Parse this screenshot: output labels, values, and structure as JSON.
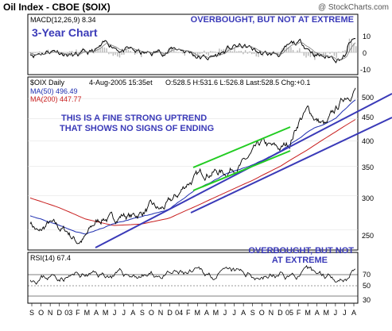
{
  "header": {
    "title": "Oil Index - CBOE ($OIX)",
    "watermark": "@ StockCharts.com"
  },
  "macd_panel": {
    "label": "MACD(12,26,9) 8.34",
    "chart_label": "3-Year Chart",
    "annotation": "OVERBOUGHT, BUT NOT AT EXTREME",
    "y_ticks": [
      "10",
      "0",
      "-10"
    ]
  },
  "price_panel": {
    "info_symbol": "$OIX Daily",
    "info_date": "4-Aug-2005 15:35et",
    "info_ohlc": "O:528.5 H:531.6 L:526.8 Last:528.5 Chg:+0.1",
    "ma50_label": "MA(50) 496.49",
    "ma200_label": "MA(200) 447.77",
    "annotation_line1": "THIS IS A FINE STRONG UPTREND",
    "annotation_line2": "THAT SHOWS NO SIGNS OF ENDING",
    "y_ticks": [
      "500",
      "450",
      "400",
      "350",
      "300",
      "250"
    ]
  },
  "rsi_panel": {
    "label": "RSI(14) 67.4",
    "annotation_line1": "OVERBOUGHT, BUT NOT",
    "annotation_line2": "AT EXTREME",
    "y_ticks": [
      "70",
      "50",
      "30"
    ]
  },
  "x_axis": {
    "labels": [
      "S",
      "O",
      "N",
      "D",
      "03",
      "F",
      "M",
      "A",
      "M",
      "J",
      "J",
      "A",
      "S",
      "O",
      "N",
      "D",
      "04",
      "F",
      "M",
      "A",
      "M",
      "J",
      "J",
      "A",
      "S",
      "O",
      "N",
      "D",
      "05",
      "F",
      "M",
      "A",
      "M",
      "J",
      "J",
      "A"
    ]
  },
  "colors": {
    "price": "#000000",
    "ma50": "#1f2fb0",
    "ma200": "#c81e1e",
    "trendline": "#3a3ab8",
    "channel": "#22cc22",
    "annotation": "#3a3ab8",
    "macd": "#000000",
    "macd_histogram": "#b8b8b8"
  },
  "chart_data": {
    "type": "line",
    "title": "Oil Index - CBOE ($OIX)",
    "x_range": [
      "2002-09",
      "2005-08"
    ],
    "price": {
      "scale": "log",
      "ylim": [
        225,
        560
      ],
      "series": [
        {
          "name": "$OIX Daily",
          "x": [
            "2002-09-01",
            "2002-10-01",
            "2002-11-01",
            "2002-12-01",
            "2003-01-01",
            "2003-02-01",
            "2003-03-01",
            "2003-04-01",
            "2003-05-01",
            "2003-06-01",
            "2003-07-01",
            "2003-08-01",
            "2003-09-01",
            "2003-10-01",
            "2003-11-01",
            "2003-12-01",
            "2004-01-01",
            "2004-02-01",
            "2004-03-01",
            "2004-04-01",
            "2004-05-01",
            "2004-06-01",
            "2004-07-01",
            "2004-08-01",
            "2004-09-01",
            "2004-10-01",
            "2004-11-01",
            "2004-12-01",
            "2005-01-01",
            "2005-02-01",
            "2005-03-01",
            "2005-04-01",
            "2005-05-01",
            "2005-06-01",
            "2005-07-01",
            "2005-08-04"
          ],
          "values": [
            262,
            245,
            258,
            252,
            248,
            236,
            240,
            258,
            268,
            264,
            272,
            268,
            274,
            282,
            276,
            286,
            300,
            322,
            330,
            340,
            342,
            338,
            350,
            355,
            372,
            392,
            384,
            382,
            396,
            448,
            470,
            446,
            432,
            468,
            505,
            528.5
          ]
        },
        {
          "name": "MA(50)",
          "x": [
            "2002-09-01",
            "2002-12-01",
            "2003-03-01",
            "2003-06-01",
            "2003-09-01",
            "2003-12-01",
            "2004-03-01",
            "2004-06-01",
            "2004-09-01",
            "2004-12-01",
            "2005-03-01",
            "2005-06-01",
            "2005-08-04"
          ],
          "values": [
            270,
            258,
            245,
            258,
            268,
            278,
            310,
            335,
            352,
            378,
            420,
            450,
            496.49
          ]
        },
        {
          "name": "MA(200)",
          "x": [
            "2002-09-01",
            "2002-12-01",
            "2003-03-01",
            "2003-06-01",
            "2003-09-01",
            "2003-12-01",
            "2004-03-01",
            "2004-06-01",
            "2004-09-01",
            "2004-12-01",
            "2005-03-01",
            "2005-06-01",
            "2005-08-04"
          ],
          "values": [
            296,
            282,
            265,
            256,
            258,
            266,
            284,
            304,
            325,
            350,
            382,
            420,
            447.77
          ]
        }
      ]
    },
    "macd": {
      "last": 8.34,
      "ylim": [
        -15,
        20
      ]
    },
    "rsi": {
      "last": 67.4,
      "ylim": [
        0,
        100
      ],
      "levels": [
        70,
        50,
        30
      ]
    }
  }
}
